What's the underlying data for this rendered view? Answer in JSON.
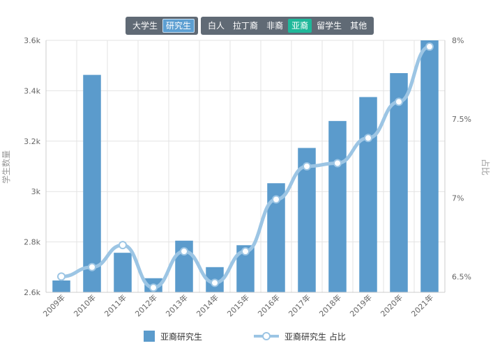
{
  "tabs": {
    "level_group": [
      {
        "label": "大学生",
        "active": false
      },
      {
        "label": "研究生",
        "active": true
      }
    ],
    "race_group": [
      {
        "label": "白人",
        "active": false
      },
      {
        "label": "拉丁裔",
        "active": false
      },
      {
        "label": "非裔",
        "active": false
      },
      {
        "label": "亚裔",
        "active": true
      },
      {
        "label": "留学生",
        "active": false
      },
      {
        "label": "其他",
        "active": false
      }
    ]
  },
  "colors": {
    "bar": "#5b9bcc",
    "line": "#9cc5e4",
    "tab_active_level": "#5d9fd2",
    "tab_active_race": "#1fb89a",
    "tab_group_bg": "#606a75"
  },
  "chart_data": {
    "type": "bar+line",
    "categories": [
      "2009年",
      "2010年",
      "2011年",
      "2012年",
      "2013年",
      "2014年",
      "2015年",
      "2016年",
      "2017年",
      "2018年",
      "2019年",
      "2020年",
      "2021年"
    ],
    "series": [
      {
        "name": "亚裔研究生",
        "type": "bar",
        "axis": "left",
        "values": [
          2647,
          3463,
          2757,
          2656,
          2805,
          2700,
          2787,
          3033,
          3173,
          3280,
          3375,
          3470,
          3600
        ]
      },
      {
        "name": "亚裔研究生 占比",
        "type": "line",
        "axis": "right",
        "values": [
          6.5,
          6.56,
          6.7,
          6.43,
          6.66,
          6.46,
          6.66,
          6.99,
          7.2,
          7.22,
          7.38,
          7.61,
          7.96
        ]
      }
    ],
    "ylabel_left": "学生数量",
    "ylabel_right": "占比",
    "ylim_left": [
      2600,
      3600
    ],
    "ylim_right": [
      6.4,
      8
    ],
    "yticks_left": [
      "2.6k",
      "2.8k",
      "3k",
      "3.2k",
      "3.4k",
      "3.6k"
    ],
    "yticks_right": [
      "6.5%",
      "7%",
      "7.5%",
      "8%"
    ],
    "legend_position": "bottom",
    "grid": true
  }
}
